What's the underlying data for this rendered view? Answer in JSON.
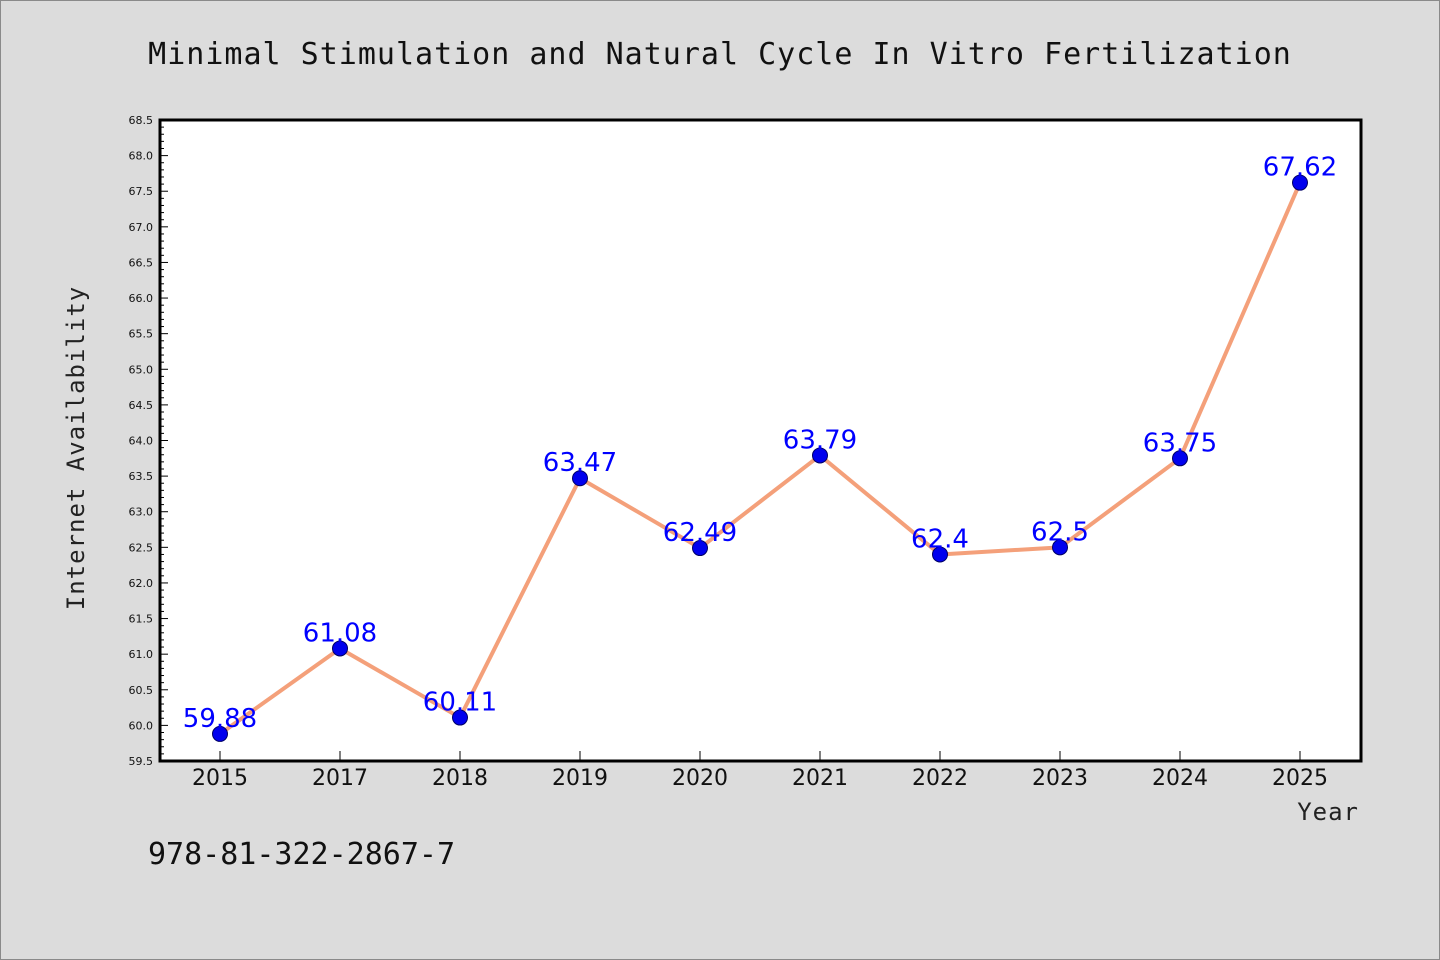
{
  "chart_data": {
    "type": "line",
    "title": "Minimal Stimulation and Natural Cycle In Vitro Fertilization",
    "xlabel": "Year",
    "ylabel": "Internet Availability",
    "categories": [
      "2015",
      "2017",
      "2018",
      "2019",
      "2020",
      "2021",
      "2022",
      "2023",
      "2024",
      "2025"
    ],
    "values": [
      59.88,
      61.08,
      60.11,
      63.47,
      62.49,
      63.79,
      62.4,
      62.5,
      63.75,
      67.62
    ],
    "data_labels": [
      "59.88",
      "61.08",
      "60.11",
      "63.47",
      "62.49",
      "63.79",
      "62.4",
      "62.5",
      "63.75",
      "67.62"
    ],
    "ylim": [
      59.5,
      68.5
    ],
    "yticks": [
      "59.5",
      "60.0",
      "60.5",
      "61.0",
      "61.5",
      "62.0",
      "62.5",
      "63.0",
      "63.5",
      "64.0",
      "64.5",
      "65.0",
      "65.5",
      "66.0",
      "66.5",
      "67.0",
      "67.5",
      "68.0",
      "68.5"
    ],
    "grid": false,
    "legend": "none",
    "colors": {
      "line": "#f4a07a",
      "marker": "#0000ee",
      "marker_edge": "#000066",
      "data_label": "#0000ff",
      "plot_background": "#ffffff",
      "figure_background": "#dcdcdc"
    }
  },
  "footer_text": "978-81-322-2867-7"
}
